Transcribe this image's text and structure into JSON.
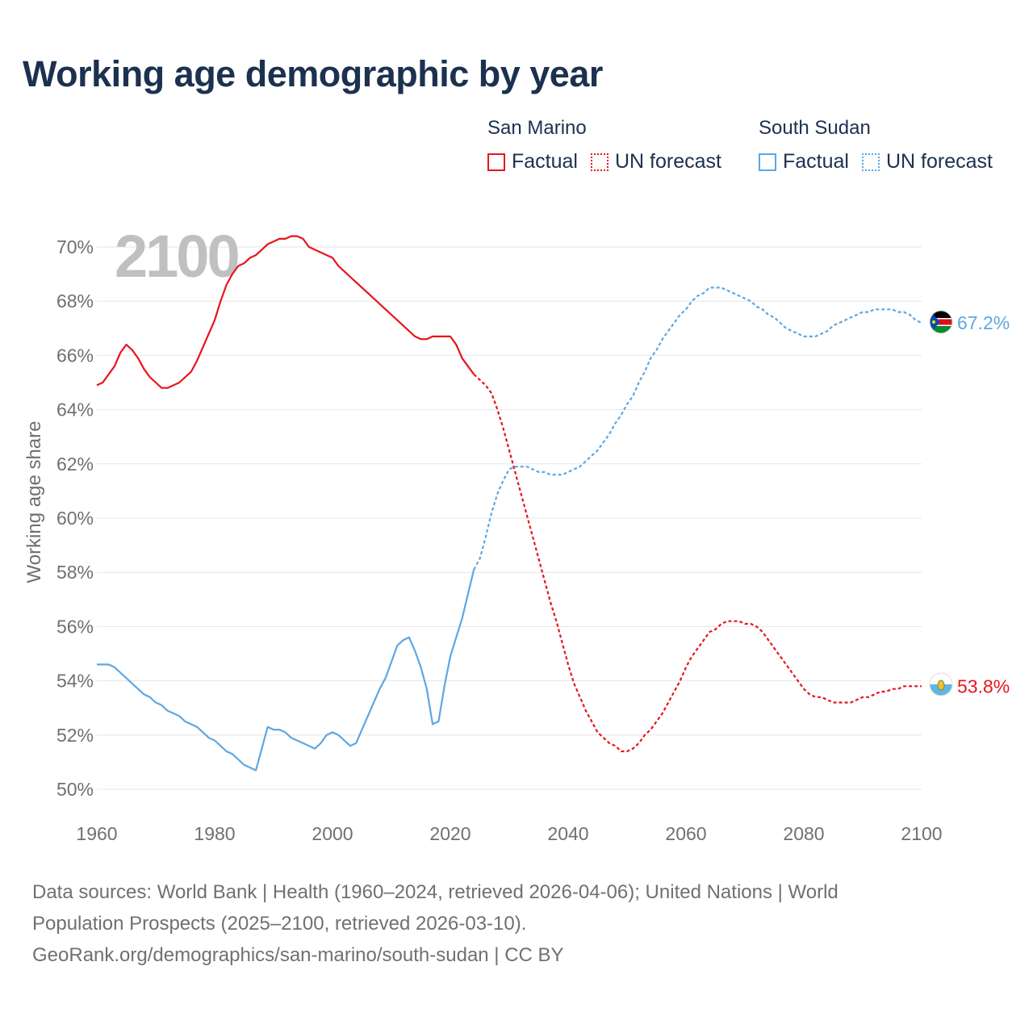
{
  "title": "Working age demographic by year",
  "legend": {
    "series": [
      {
        "name": "San Marino",
        "color": "#e8141b",
        "factual_label": "Factual",
        "forecast_label": "UN forecast"
      },
      {
        "name": "South Sudan",
        "color": "#5da7e3",
        "factual_label": "Factual",
        "forecast_label": "UN forecast"
      }
    ]
  },
  "footer": {
    "line1": "Data sources: World Bank | Health (1960–2024, retrieved 2026-04-06); United Nations | World",
    "line2": "Population Prospects (2025–2100, retrieved 2026-03-10).",
    "line3": "GeoRank.org/demographics/san-marino/south-sudan | CC BY"
  },
  "chart_data": {
    "type": "line",
    "title": "Working age demographic by year",
    "year_label": "2100",
    "ylabel": "Working age share",
    "xlabel": "",
    "xlim": [
      1960,
      2100
    ],
    "ylim": [
      50,
      70
    ],
    "x_ticks": [
      "1960",
      "1980",
      "2000",
      "2020",
      "2040",
      "2060",
      "2080",
      "2100"
    ],
    "y_ticks": [
      "50%",
      "52%",
      "54%",
      "56%",
      "58%",
      "60%",
      "62%",
      "64%",
      "66%",
      "68%",
      "70%"
    ],
    "factual_range": [
      1960,
      2024
    ],
    "forecast_range": [
      2024,
      2100
    ],
    "series": [
      {
        "name": "San Marino",
        "color": "#e8141b",
        "end_label": "53.8%",
        "flag": "san-marino-flag",
        "points": [
          [
            1960,
            64.9
          ],
          [
            1961,
            65.0
          ],
          [
            1962,
            65.3
          ],
          [
            1963,
            65.6
          ],
          [
            1964,
            66.1
          ],
          [
            1965,
            66.4
          ],
          [
            1966,
            66.2
          ],
          [
            1967,
            65.9
          ],
          [
            1968,
            65.5
          ],
          [
            1969,
            65.2
          ],
          [
            1970,
            65.0
          ],
          [
            1971,
            64.8
          ],
          [
            1972,
            64.8
          ],
          [
            1973,
            64.9
          ],
          [
            1974,
            65.0
          ],
          [
            1975,
            65.2
          ],
          [
            1976,
            65.4
          ],
          [
            1977,
            65.8
          ],
          [
            1978,
            66.3
          ],
          [
            1979,
            66.8
          ],
          [
            1980,
            67.3
          ],
          [
            1981,
            68.0
          ],
          [
            1982,
            68.6
          ],
          [
            1983,
            69.0
          ],
          [
            1984,
            69.3
          ],
          [
            1985,
            69.4
          ],
          [
            1986,
            69.6
          ],
          [
            1987,
            69.7
          ],
          [
            1988,
            69.9
          ],
          [
            1989,
            70.1
          ],
          [
            1990,
            70.2
          ],
          [
            1991,
            70.3
          ],
          [
            1992,
            70.3
          ],
          [
            1993,
            70.4
          ],
          [
            1994,
            70.4
          ],
          [
            1995,
            70.3
          ],
          [
            1996,
            70.0
          ],
          [
            1997,
            69.9
          ],
          [
            1998,
            69.8
          ],
          [
            1999,
            69.7
          ],
          [
            2000,
            69.6
          ],
          [
            2001,
            69.3
          ],
          [
            2002,
            69.1
          ],
          [
            2003,
            68.9
          ],
          [
            2004,
            68.7
          ],
          [
            2005,
            68.5
          ],
          [
            2006,
            68.3
          ],
          [
            2007,
            68.1
          ],
          [
            2008,
            67.9
          ],
          [
            2009,
            67.7
          ],
          [
            2010,
            67.5
          ],
          [
            2011,
            67.3
          ],
          [
            2012,
            67.1
          ],
          [
            2013,
            66.9
          ],
          [
            2014,
            66.7
          ],
          [
            2015,
            66.6
          ],
          [
            2016,
            66.6
          ],
          [
            2017,
            66.7
          ],
          [
            2018,
            66.7
          ],
          [
            2019,
            66.7
          ],
          [
            2020,
            66.7
          ],
          [
            2021,
            66.4
          ],
          [
            2022,
            65.9
          ],
          [
            2023,
            65.6
          ],
          [
            2024,
            65.3
          ],
          [
            2025,
            65.1
          ],
          [
            2026,
            64.9
          ],
          [
            2027,
            64.6
          ],
          [
            2028,
            64.0
          ],
          [
            2029,
            63.3
          ],
          [
            2030,
            62.5
          ],
          [
            2031,
            61.7
          ],
          [
            2032,
            60.9
          ],
          [
            2033,
            60.1
          ],
          [
            2034,
            59.3
          ],
          [
            2035,
            58.5
          ],
          [
            2036,
            57.7
          ],
          [
            2037,
            56.9
          ],
          [
            2038,
            56.2
          ],
          [
            2039,
            55.4
          ],
          [
            2040,
            54.6
          ],
          [
            2041,
            53.9
          ],
          [
            2042,
            53.4
          ],
          [
            2043,
            52.9
          ],
          [
            2044,
            52.5
          ],
          [
            2045,
            52.1
          ],
          [
            2046,
            51.9
          ],
          [
            2047,
            51.7
          ],
          [
            2048,
            51.6
          ],
          [
            2049,
            51.4
          ],
          [
            2050,
            51.4
          ],
          [
            2051,
            51.5
          ],
          [
            2052,
            51.7
          ],
          [
            2053,
            52.0
          ],
          [
            2054,
            52.2
          ],
          [
            2055,
            52.5
          ],
          [
            2056,
            52.8
          ],
          [
            2057,
            53.2
          ],
          [
            2058,
            53.6
          ],
          [
            2059,
            54.0
          ],
          [
            2060,
            54.5
          ],
          [
            2061,
            54.9
          ],
          [
            2062,
            55.2
          ],
          [
            2063,
            55.5
          ],
          [
            2064,
            55.8
          ],
          [
            2065,
            55.9
          ],
          [
            2066,
            56.1
          ],
          [
            2067,
            56.2
          ],
          [
            2068,
            56.2
          ],
          [
            2069,
            56.2
          ],
          [
            2070,
            56.1
          ],
          [
            2071,
            56.1
          ],
          [
            2072,
            56.0
          ],
          [
            2073,
            55.8
          ],
          [
            2074,
            55.5
          ],
          [
            2075,
            55.2
          ],
          [
            2076,
            54.9
          ],
          [
            2077,
            54.6
          ],
          [
            2078,
            54.3
          ],
          [
            2079,
            54.0
          ],
          [
            2080,
            53.7
          ],
          [
            2081,
            53.5
          ],
          [
            2082,
            53.4
          ],
          [
            2083,
            53.4
          ],
          [
            2084,
            53.3
          ],
          [
            2085,
            53.2
          ],
          [
            2086,
            53.2
          ],
          [
            2087,
            53.2
          ],
          [
            2088,
            53.2
          ],
          [
            2089,
            53.3
          ],
          [
            2090,
            53.4
          ],
          [
            2091,
            53.4
          ],
          [
            2092,
            53.5
          ],
          [
            2093,
            53.6
          ],
          [
            2094,
            53.6
          ],
          [
            2095,
            53.7
          ],
          [
            2096,
            53.7
          ],
          [
            2097,
            53.8
          ],
          [
            2098,
            53.8
          ],
          [
            2099,
            53.8
          ],
          [
            2100,
            53.8
          ]
        ]
      },
      {
        "name": "South Sudan",
        "color": "#5da7e3",
        "end_label": "67.2%",
        "flag": "south-sudan-flag",
        "points": [
          [
            1960,
            54.6
          ],
          [
            1961,
            54.6
          ],
          [
            1962,
            54.6
          ],
          [
            1963,
            54.5
          ],
          [
            1964,
            54.3
          ],
          [
            1965,
            54.1
          ],
          [
            1966,
            53.9
          ],
          [
            1967,
            53.7
          ],
          [
            1968,
            53.5
          ],
          [
            1969,
            53.4
          ],
          [
            1970,
            53.2
          ],
          [
            1971,
            53.1
          ],
          [
            1972,
            52.9
          ],
          [
            1973,
            52.8
          ],
          [
            1974,
            52.7
          ],
          [
            1975,
            52.5
          ],
          [
            1976,
            52.4
          ],
          [
            1977,
            52.3
          ],
          [
            1978,
            52.1
          ],
          [
            1979,
            51.9
          ],
          [
            1980,
            51.8
          ],
          [
            1981,
            51.6
          ],
          [
            1982,
            51.4
          ],
          [
            1983,
            51.3
          ],
          [
            1984,
            51.1
          ],
          [
            1985,
            50.9
          ],
          [
            1986,
            50.8
          ],
          [
            1987,
            50.7
          ],
          [
            1988,
            51.5
          ],
          [
            1989,
            52.3
          ],
          [
            1990,
            52.2
          ],
          [
            1991,
            52.2
          ],
          [
            1992,
            52.1
          ],
          [
            1993,
            51.9
          ],
          [
            1994,
            51.8
          ],
          [
            1995,
            51.7
          ],
          [
            1996,
            51.6
          ],
          [
            1997,
            51.5
          ],
          [
            1998,
            51.7
          ],
          [
            1999,
            52.0
          ],
          [
            2000,
            52.1
          ],
          [
            2001,
            52.0
          ],
          [
            2002,
            51.8
          ],
          [
            2003,
            51.6
          ],
          [
            2004,
            51.7
          ],
          [
            2005,
            52.2
          ],
          [
            2006,
            52.7
          ],
          [
            2007,
            53.2
          ],
          [
            2008,
            53.7
          ],
          [
            2009,
            54.1
          ],
          [
            2010,
            54.7
          ],
          [
            2011,
            55.3
          ],
          [
            2012,
            55.5
          ],
          [
            2013,
            55.6
          ],
          [
            2014,
            55.1
          ],
          [
            2015,
            54.5
          ],
          [
            2016,
            53.7
          ],
          [
            2017,
            52.4
          ],
          [
            2018,
            52.5
          ],
          [
            2019,
            53.8
          ],
          [
            2020,
            54.9
          ],
          [
            2021,
            55.6
          ],
          [
            2022,
            56.3
          ],
          [
            2023,
            57.2
          ],
          [
            2024,
            58.1
          ],
          [
            2025,
            58.5
          ],
          [
            2026,
            59.3
          ],
          [
            2027,
            60.2
          ],
          [
            2028,
            60.9
          ],
          [
            2029,
            61.4
          ],
          [
            2030,
            61.8
          ],
          [
            2031,
            61.9
          ],
          [
            2032,
            61.9
          ],
          [
            2033,
            61.9
          ],
          [
            2034,
            61.8
          ],
          [
            2035,
            61.7
          ],
          [
            2036,
            61.7
          ],
          [
            2037,
            61.6
          ],
          [
            2038,
            61.6
          ],
          [
            2039,
            61.6
          ],
          [
            2040,
            61.7
          ],
          [
            2041,
            61.8
          ],
          [
            2042,
            61.9
          ],
          [
            2043,
            62.1
          ],
          [
            2044,
            62.3
          ],
          [
            2045,
            62.5
          ],
          [
            2046,
            62.8
          ],
          [
            2047,
            63.1
          ],
          [
            2048,
            63.5
          ],
          [
            2049,
            63.8
          ],
          [
            2050,
            64.2
          ],
          [
            2051,
            64.5
          ],
          [
            2052,
            65.0
          ],
          [
            2053,
            65.4
          ],
          [
            2054,
            65.9
          ],
          [
            2055,
            66.2
          ],
          [
            2056,
            66.6
          ],
          [
            2057,
            66.9
          ],
          [
            2058,
            67.2
          ],
          [
            2059,
            67.5
          ],
          [
            2060,
            67.7
          ],
          [
            2061,
            68.0
          ],
          [
            2062,
            68.2
          ],
          [
            2063,
            68.3
          ],
          [
            2064,
            68.5
          ],
          [
            2065,
            68.5
          ],
          [
            2066,
            68.5
          ],
          [
            2067,
            68.4
          ],
          [
            2068,
            68.3
          ],
          [
            2069,
            68.2
          ],
          [
            2070,
            68.1
          ],
          [
            2071,
            68.0
          ],
          [
            2072,
            67.8
          ],
          [
            2073,
            67.7
          ],
          [
            2074,
            67.5
          ],
          [
            2075,
            67.4
          ],
          [
            2076,
            67.2
          ],
          [
            2077,
            67.0
          ],
          [
            2078,
            66.9
          ],
          [
            2079,
            66.8
          ],
          [
            2080,
            66.7
          ],
          [
            2081,
            66.7
          ],
          [
            2082,
            66.7
          ],
          [
            2083,
            66.8
          ],
          [
            2084,
            66.9
          ],
          [
            2085,
            67.1
          ],
          [
            2086,
            67.2
          ],
          [
            2087,
            67.3
          ],
          [
            2088,
            67.4
          ],
          [
            2089,
            67.5
          ],
          [
            2090,
            67.6
          ],
          [
            2091,
            67.6
          ],
          [
            2092,
            67.7
          ],
          [
            2093,
            67.7
          ],
          [
            2094,
            67.7
          ],
          [
            2095,
            67.7
          ],
          [
            2096,
            67.6
          ],
          [
            2097,
            67.6
          ],
          [
            2098,
            67.5
          ],
          [
            2099,
            67.3
          ],
          [
            2100,
            67.2
          ]
        ]
      }
    ]
  }
}
